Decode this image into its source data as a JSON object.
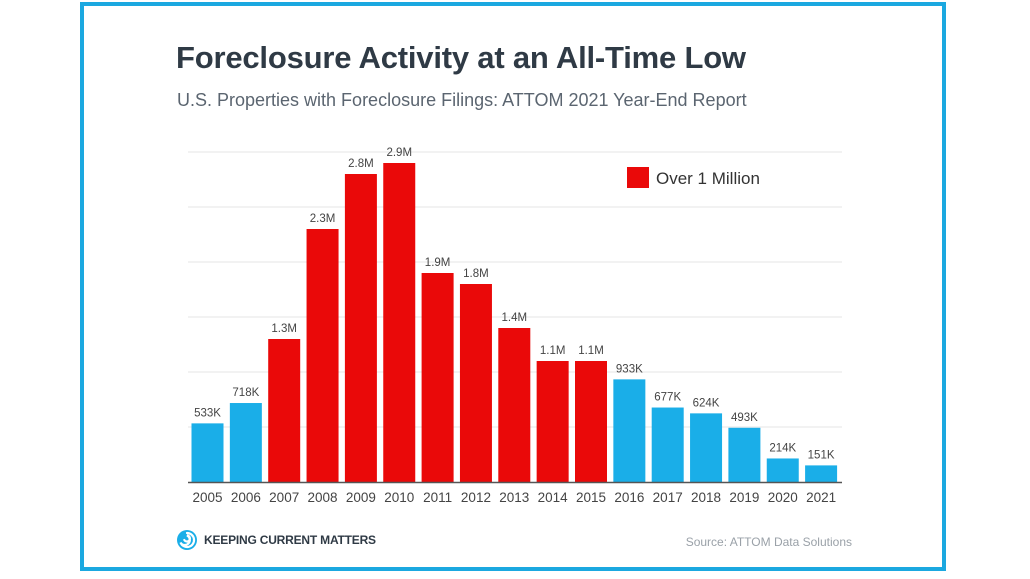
{
  "chart_data": {
    "type": "bar",
    "title": "Foreclosure Activity at an All-Time Low",
    "subtitle": "U.S. Properties with Foreclosure Filings:  ATTOM 2021 Year-End Report",
    "categories": [
      "2005",
      "2006",
      "2007",
      "2008",
      "2009",
      "2010",
      "2011",
      "2012",
      "2013",
      "2014",
      "2015",
      "2016",
      "2017",
      "2018",
      "2019",
      "2020",
      "2021"
    ],
    "values": [
      533000,
      718000,
      1300000,
      2300000,
      2800000,
      2900000,
      1900000,
      1800000,
      1400000,
      1100000,
      1100000,
      933000,
      677000,
      624000,
      493000,
      214000,
      151000
    ],
    "labels": [
      "533K",
      "718K",
      "1.3M",
      "2.3M",
      "2.8M",
      "2.9M",
      "1.9M",
      "1.8M",
      "1.4M",
      "1.1M",
      "1.1M",
      "933K",
      "677K",
      "624K",
      "493K",
      "214K",
      "151K"
    ],
    "highlight": [
      false,
      false,
      true,
      true,
      true,
      true,
      true,
      true,
      true,
      true,
      true,
      false,
      false,
      false,
      false,
      false,
      false
    ],
    "ylim": [
      0,
      3000000
    ],
    "grid": true,
    "xlabel": "",
    "ylabel": "",
    "legend": {
      "label": "Over 1 Million",
      "position": "top-right"
    },
    "colors": {
      "default": "#1aaee8",
      "highlight": "#ea0909",
      "grid": "#e4e4e4",
      "axis": "#555555",
      "text": "#444444"
    }
  },
  "branding": {
    "logo_text": "KEEPING CURRENT MATTERS",
    "logo_icon": "spiral-logo-icon"
  },
  "source": "Source: ATTOM Data Solutions",
  "frame_color": "#1ba8e0"
}
